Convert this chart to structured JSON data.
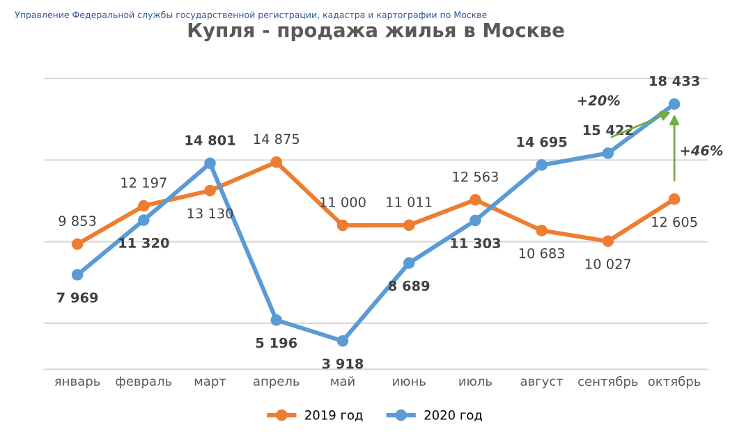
{
  "chart_data": {
    "type": "line",
    "title": "Купля - продажа жилья в Москве",
    "categories": [
      "январь",
      "февраль",
      "март",
      "апрель",
      "май",
      "июнь",
      "июль",
      "август",
      "сентябрь",
      "октябрь"
    ],
    "series": [
      {
        "name": "2019 год",
        "color": "#ed7d31",
        "values": [
          9853,
          12197,
          13130,
          14875,
          11000,
          11011,
          12563,
          10683,
          10027,
          12605
        ]
      },
      {
        "name": "2020 год",
        "color": "#5b9bd5",
        "values": [
          7969,
          11320,
          14801,
          5196,
          3918,
          8689,
          11303,
          14695,
          15422,
          18433
        ]
      }
    ],
    "yticks": [
      {
        "value": 5000,
        "label": null
      },
      {
        "value": 10000,
        "label": null
      },
      {
        "value": 15000,
        "label": null
      },
      {
        "value": 20000,
        "label": null
      }
    ],
    "grid": "y",
    "legend": "bottom",
    "marker": "circle",
    "line_style": "solid",
    "data_labels": true,
    "annotations": [
      "+20%",
      "+46%",
      "Управление Федеральной службы государственной регистрации, кадастра и картографии по Москве"
    ]
  }
}
